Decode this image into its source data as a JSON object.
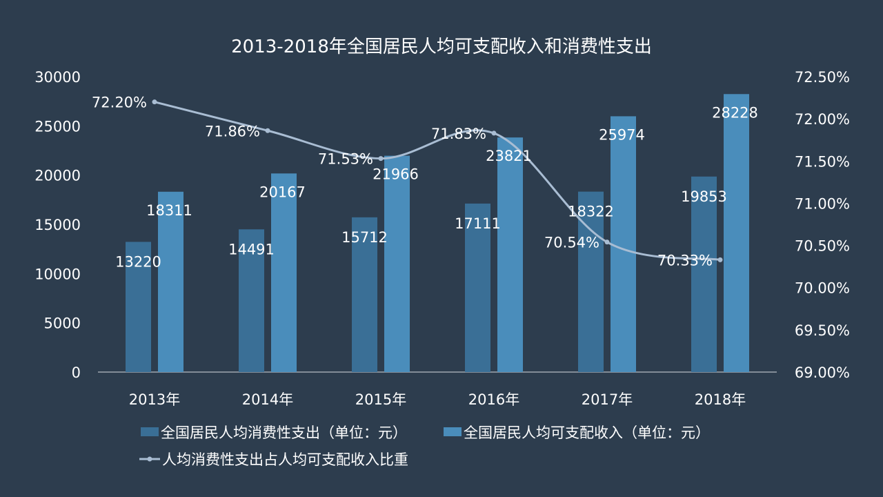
{
  "chart_data": {
    "type": "bar",
    "title": "2013-2018年全国居民人均可支配收入和消费性支出",
    "categories": [
      "2013年",
      "2014年",
      "2015年",
      "2016年",
      "2017年",
      "2018年"
    ],
    "series": [
      {
        "name": "全国居民人均消费性支出（单位：元）",
        "type": "bar",
        "axis": "left",
        "color": "#3a6f96",
        "values": [
          13220,
          14491,
          15712,
          17111,
          18322,
          19853
        ],
        "labels": [
          "13220",
          "14491",
          "15712",
          "17111",
          "18322",
          "19853"
        ]
      },
      {
        "name": "全国居民人均可支配收入（单位：元）",
        "type": "bar",
        "axis": "left",
        "color": "#4a8dbb",
        "values": [
          18311,
          20167,
          21966,
          23821,
          25974,
          28228
        ],
        "labels": [
          "18311",
          "20167",
          "21966",
          "23821",
          "25974",
          "28228"
        ]
      },
      {
        "name": "人均消费性支出占人均可支配收入比重",
        "type": "line",
        "axis": "right",
        "color": "#a9bdd3",
        "values": [
          72.2,
          71.86,
          71.53,
          71.83,
          70.54,
          70.33
        ],
        "labels": [
          "72.20%",
          "71.86%",
          "71.53%",
          "71.83%",
          "70.54%",
          "70.33%"
        ]
      }
    ],
    "y_left": {
      "ylim": [
        0,
        30000
      ],
      "ticks": [
        "0",
        "5000",
        "10000",
        "15000",
        "20000",
        "25000",
        "30000"
      ]
    },
    "y_right": {
      "ylim": [
        69.0,
        72.5
      ],
      "ticks": [
        "69.00%",
        "69.50%",
        "70.00%",
        "70.50%",
        "71.00%",
        "71.50%",
        "72.00%",
        "72.50%"
      ]
    },
    "legend_position": "bottom",
    "grid": false
  }
}
